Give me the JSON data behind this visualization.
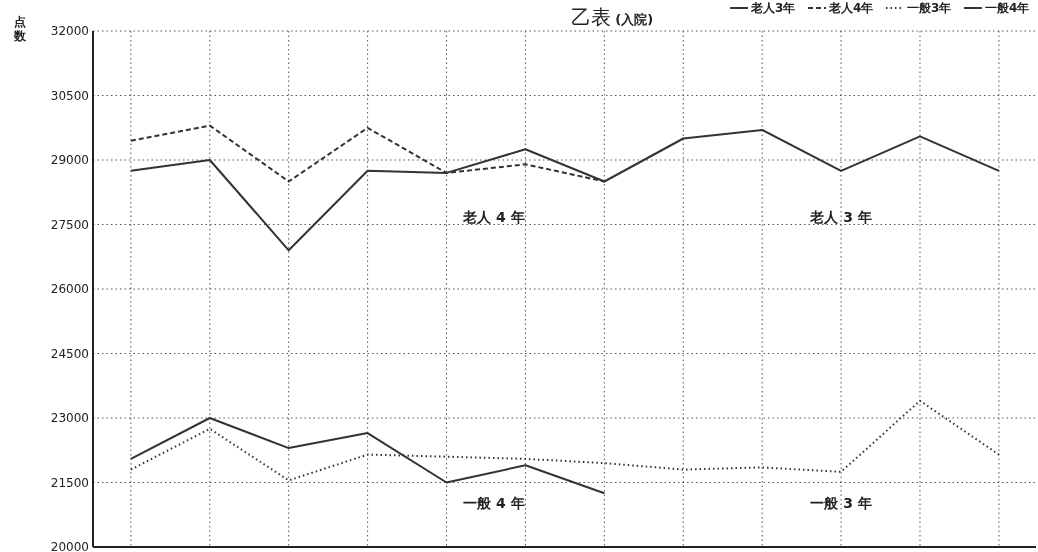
{
  "chart_data": {
    "type": "line",
    "title": "乙表",
    "subtitle": "(入院)",
    "ylabel": "点数",
    "categories": [
      null,
      null,
      null,
      null,
      null,
      null,
      null,
      null,
      null,
      null,
      null,
      null
    ],
    "series": [
      {
        "name": "老人3年",
        "color": "#333333",
        "line_style": "solid",
        "values": [
          28750,
          29000,
          26900,
          28750,
          28700,
          29250,
          28500,
          29500,
          29700,
          28750,
          29550,
          28750
        ]
      },
      {
        "name": "老人4年",
        "color": "#333333",
        "line_style": "dashed",
        "values": [
          29450,
          29800,
          28500,
          29750,
          28700,
          28900,
          28500,
          null,
          null,
          null,
          null,
          null
        ]
      },
      {
        "name": "一般3年",
        "color": "#333333",
        "line_style": "dotted",
        "values": [
          21800,
          22750,
          21550,
          22150,
          22100,
          22050,
          21950,
          21800,
          21850,
          21750,
          23400,
          22150
        ]
      },
      {
        "name": "一般4年",
        "color": "#333333",
        "line_style": "solid",
        "values": [
          22050,
          23000,
          22300,
          22650,
          21500,
          21900,
          21250,
          null,
          null,
          null,
          null,
          null
        ]
      }
    ],
    "ylim": [
      20000,
      32000
    ],
    "yticks": [
      20000,
      21500,
      23000,
      24500,
      26000,
      27500,
      29000,
      30500,
      32000
    ],
    "grid": true,
    "legend": "top right",
    "marker": "none",
    "annotations": [
      "老人 4 年",
      "老人 3 年",
      "一般 4 年",
      "一般 3 年"
    ]
  }
}
